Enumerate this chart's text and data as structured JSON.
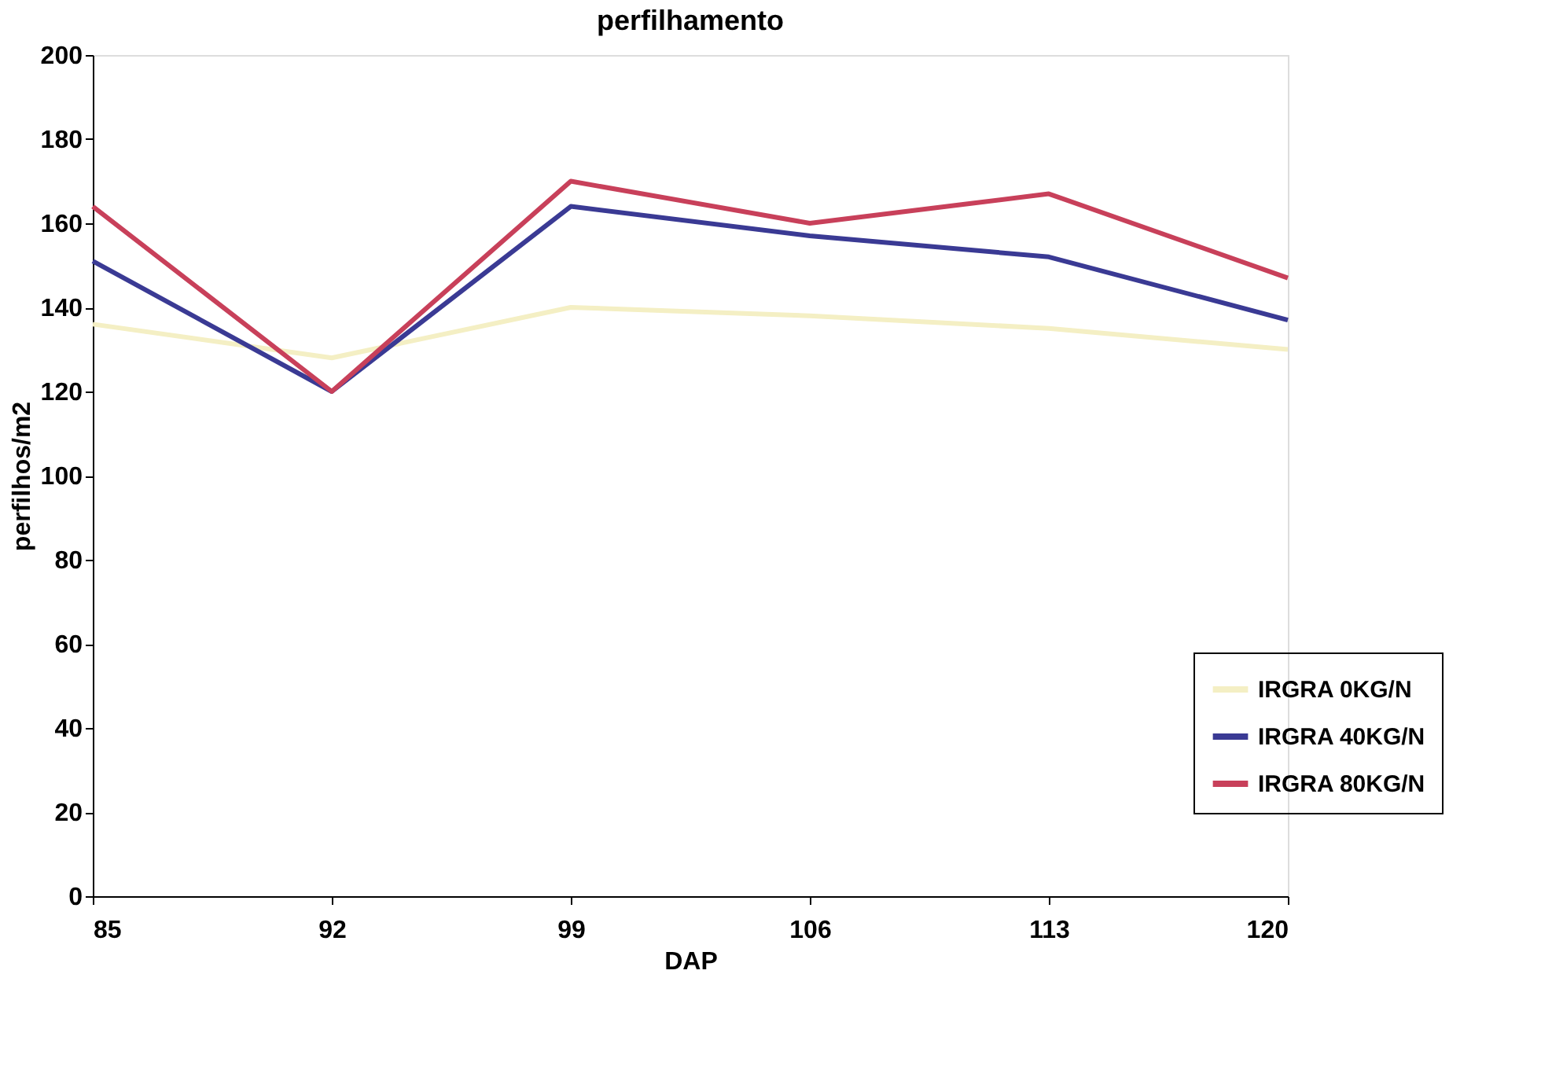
{
  "chart_data": {
    "type": "line",
    "title": "perfilhamento",
    "xlabel": "DAP",
    "ylabel": "perfilhos/m2",
    "x": [
      85,
      92,
      99,
      106,
      113,
      120
    ],
    "series": [
      {
        "name": "IRGRA 0KG/N",
        "color": "#f4efc4",
        "values": [
          136,
          128,
          140,
          138,
          135,
          130
        ]
      },
      {
        "name": "IRGRA 40KG/N",
        "color": "#3a3a94",
        "values": [
          151,
          120,
          164,
          157,
          152,
          137
        ]
      },
      {
        "name": "IRGRA 80KG/N",
        "color": "#c8405a",
        "values": [
          164,
          120,
          170,
          160,
          167,
          147
        ]
      }
    ],
    "xlim": [
      85,
      120
    ],
    "xticks": [
      85,
      92,
      99,
      106,
      113,
      120
    ],
    "ylim": [
      0,
      200
    ],
    "yticks": [
      0,
      20,
      40,
      60,
      80,
      100,
      120,
      140,
      160,
      180,
      200
    ],
    "grid": false,
    "legend": "bottom right",
    "marker": "none",
    "line_style": "solid"
  }
}
